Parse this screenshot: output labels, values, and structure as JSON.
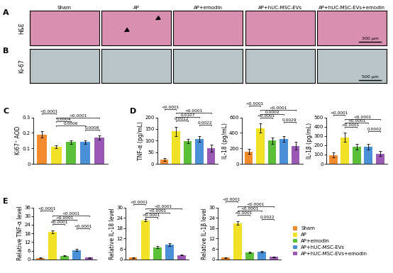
{
  "images": {
    "columns": [
      "Sham",
      "AP",
      "AP+emodin",
      "AP+hUC-MSC-EVs",
      "AP+hUC-MSC-EVs+emodin"
    ],
    "rows": [
      {
        "panel": "A",
        "row_label": "H&E",
        "scale_bar": "300 μm"
      },
      {
        "panel": "B",
        "row_label": "Ki-67",
        "scale_bar": "500 μm"
      }
    ]
  },
  "chart_data": [
    {
      "type": "bar",
      "panel": "C",
      "y_label": "Ki67⁺ AOD",
      "categories": [
        "Sham",
        "AP",
        "AP+emodin",
        "AP+hUC-MSC-EVs",
        "AP+hUC-MSC-EVs+emodin"
      ],
      "values": [
        0.19,
        0.11,
        0.14,
        0.14,
        0.17
      ],
      "errors": [
        0.02,
        0.01,
        0.01,
        0.01,
        0.015
      ],
      "colors": [
        "#f28a2e",
        "#f2e227",
        "#5cbf3a",
        "#4a90d9",
        "#9b59b6"
      ],
      "ylim": [
        0,
        0.3
      ],
      "yticks": [
        0,
        0.1,
        0.2,
        0.3
      ],
      "tick_labels": "y",
      "comparisons": [
        {
          "from": "AP+hUC-MSC-EVs",
          "to": "AP+hUC-MSC-EVs+emodin",
          "label": "0.0008"
        },
        {
          "from": "AP",
          "to": "AP+hUC-MSC-EVs",
          "label": "0.0006"
        },
        {
          "from": "AP",
          "to": "AP+emodin",
          "label": "0.0004"
        },
        {
          "from": "AP",
          "to": "AP+hUC-MSC-EVs+emodin",
          "label": "<0.0001"
        },
        {
          "from": "Sham",
          "to": "AP",
          "label": "<0.0001"
        }
      ]
    },
    {
      "type": "bar",
      "panel": "D",
      "y_label": "TNF-α (pg/mL)",
      "categories": [
        "Sham",
        "AP",
        "AP+emodin",
        "AP+hUC-MSC-EVs",
        "AP+hUC-MSC-EVs+emodin"
      ],
      "values": [
        18,
        140,
        98,
        108,
        68
      ],
      "errors": [
        5,
        20,
        10,
        12,
        15
      ],
      "colors": [
        "#f28a2e",
        "#f2e227",
        "#5cbf3a",
        "#4a90d9",
        "#9b59b6"
      ],
      "ylim": [
        0,
        200
      ],
      "yticks": [
        0,
        50,
        100,
        150,
        200
      ],
      "tick_labels": "y",
      "comparisons": [
        {
          "from": "AP+hUC-MSC-EVs",
          "to": "AP+hUC-MSC-EVs+emodin",
          "label": "0.0022"
        },
        {
          "from": "AP",
          "to": "AP+emodin",
          "label": "0.0012"
        },
        {
          "from": "AP",
          "to": "AP+hUC-MSC-EVs",
          "label": "0.0107"
        },
        {
          "from": "AP",
          "to": "AP+hUC-MSC-EVs+emodin",
          "label": "<0.0001"
        },
        {
          "from": "Sham",
          "to": "AP",
          "label": "<0.0001"
        }
      ]
    },
    {
      "type": "bar",
      "y_label": "IL-18 (pg/mL)",
      "categories": [
        "Sham",
        "AP",
        "AP+emodin",
        "AP+hUC-MSC-EVs",
        "AP+hUC-MSC-EVs+emodin"
      ],
      "values": [
        160,
        460,
        300,
        320,
        230
      ],
      "errors": [
        30,
        60,
        40,
        40,
        50
      ],
      "colors": [
        "#f28a2e",
        "#f2e227",
        "#5cbf3a",
        "#4a90d9",
        "#9b59b6"
      ],
      "ylim": [
        0,
        600
      ],
      "yticks": [
        0,
        200,
        400,
        600
      ],
      "tick_labels": "y",
      "comparisons": [
        {
          "from": "AP+hUC-MSC-EVs",
          "to": "AP+hUC-MSC-EVs+emodin",
          "label": "0.0029"
        },
        {
          "from": "AP",
          "to": "AP+emodin",
          "label": "<0.0001"
        },
        {
          "from": "AP",
          "to": "AP+hUC-MSC-EVs",
          "label": "0.0002"
        },
        {
          "from": "AP",
          "to": "AP+hUC-MSC-EVs+emodin",
          "label": "<0.0001"
        },
        {
          "from": "Sham",
          "to": "AP",
          "label": "<0.0001"
        }
      ]
    },
    {
      "type": "bar",
      "y_label": "IL-1β (pg/mL)",
      "categories": [
        "Sham",
        "AP",
        "AP+emodin",
        "AP+hUC-MSC-EVs",
        "AP+hUC-MSC-EVs+emodin"
      ],
      "values": [
        95,
        285,
        185,
        185,
        110
      ],
      "errors": [
        25,
        50,
        30,
        30,
        25
      ],
      "colors": [
        "#f28a2e",
        "#f2e227",
        "#5cbf3a",
        "#4a90d9",
        "#9b59b6"
      ],
      "ylim": [
        0,
        500
      ],
      "yticks": [
        0,
        100,
        200,
        300,
        400,
        500
      ],
      "tick_labels": "y",
      "comparisons": [
        {
          "from": "AP+hUC-MSC-EVs",
          "to": "AP+hUC-MSC-EVs+emodin",
          "label": "0.0002"
        },
        {
          "from": "AP",
          "to": "AP+emodin",
          "label": "<0.0001"
        },
        {
          "from": "AP",
          "to": "AP+hUC-MSC-EVs",
          "label": "<0.0001"
        },
        {
          "from": "AP",
          "to": "AP+hUC-MSC-EVs+emodin",
          "label": "<0.0001"
        },
        {
          "from": "Sham",
          "to": "AP",
          "label": "<0.0001"
        }
      ]
    },
    {
      "type": "bar",
      "panel": "E",
      "y_label": "Relative TNF-α level",
      "categories": [
        "Sham",
        "AP",
        "AP+emodin",
        "AP+hUC-MSC-EVs",
        "AP+hUC-MSC-EVs+emodin"
      ],
      "values": [
        1,
        19,
        2.5,
        6.5,
        1.2
      ],
      "errors": [
        0.2,
        1,
        0.3,
        0.8,
        0.2
      ],
      "colors": [
        "#f28a2e",
        "#f2e227",
        "#5cbf3a",
        "#4a90d9",
        "#9b59b6"
      ],
      "ylim": [
        0,
        36
      ],
      "yticks": [
        0,
        6,
        12,
        18,
        24,
        30,
        36
      ],
      "tick_labels": "y",
      "comparisons": [
        {
          "from": "AP+hUC-MSC-EVs",
          "to": "AP+hUC-MSC-EVs+emodin",
          "label": "<0.0001"
        },
        {
          "from": "AP",
          "to": "AP+emodin",
          "label": "<0.0001"
        },
        {
          "from": "AP",
          "to": "AP+hUC-MSC-EVs",
          "label": "<0.0001"
        },
        {
          "from": "AP",
          "to": "AP+hUC-MSC-EVs+emodin",
          "label": "<0.0001"
        },
        {
          "from": "Sham",
          "to": "AP",
          "label": "<0.0001"
        }
      ]
    },
    {
      "type": "bar",
      "y_label": "Relative IL-18 level",
      "categories": [
        "Sham",
        "AP",
        "AP+emodin",
        "AP+hUC-MSC-EVs",
        "AP+hUC-MSC-EVs+emodin"
      ],
      "values": [
        1,
        22.5,
        7,
        8.5,
        2.5
      ],
      "errors": [
        0.2,
        0.6,
        0.5,
        0.8,
        0.3
      ],
      "colors": [
        "#f28a2e",
        "#f2e227",
        "#5cbf3a",
        "#4a90d9",
        "#9b59b6"
      ],
      "ylim": [
        0,
        30
      ],
      "yticks": [
        0,
        6,
        12,
        18,
        24,
        30
      ],
      "tick_labels": "y",
      "comparisons": [
        {
          "from": "AP",
          "to": "AP+emodin",
          "label": "<0.0001"
        },
        {
          "from": "AP",
          "to": "AP+hUC-MSC-EVs",
          "label": "<0.0001"
        },
        {
          "from": "AP",
          "to": "AP+hUC-MSC-EVs+emodin",
          "label": "<0.0001"
        },
        {
          "from": "Sham",
          "to": "AP",
          "label": "<0.0001"
        }
      ]
    },
    {
      "type": "bar",
      "y_label": "Relative IL-1β level",
      "legend": "center left",
      "categories": [
        "Sham",
        "AP",
        "AP+emodin",
        "AP+hUC-MSC-EVs",
        "AP+hUC-MSC-EVs+emodin"
      ],
      "values": [
        1,
        21,
        4,
        4.3,
        1.5
      ],
      "errors": [
        0.2,
        1,
        0.3,
        0.4,
        0.2
      ],
      "colors": [
        "#f28a2e",
        "#f2e227",
        "#5cbf3a",
        "#4a90d9",
        "#9b59b6"
      ],
      "ylim": [
        0,
        30
      ],
      "yticks": [
        0,
        6,
        12,
        18,
        24,
        30
      ],
      "tick_labels": "y",
      "comparisons": [
        {
          "from": "AP+hUC-MSC-EVs",
          "to": "AP+hUC-MSC-EVs+emodin",
          "label": "0.0022"
        },
        {
          "from": "AP",
          "to": "AP+emodin",
          "label": "<0.0001"
        },
        {
          "from": "AP",
          "to": "AP+hUC-MSC-EVs",
          "label": "<0.0001"
        },
        {
          "from": "AP",
          "to": "AP+hUC-MSC-EVs+emodin",
          "label": "<0.0001"
        },
        {
          "from": "Sham",
          "to": "AP",
          "label": "<0.0001"
        }
      ]
    }
  ]
}
